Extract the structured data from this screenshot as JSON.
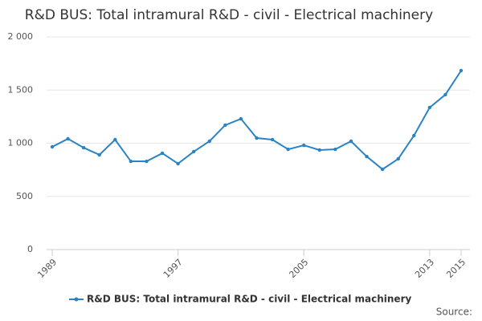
{
  "chart_data": {
    "type": "line",
    "title": "R&D BUS: Total intramural R&D - civil - Electrical machinery",
    "x": [
      1989,
      1990,
      1991,
      1992,
      1993,
      1994,
      1995,
      1996,
      1997,
      1998,
      1999,
      2000,
      2001,
      2002,
      2003,
      2004,
      2005,
      2006,
      2007,
      2008,
      2009,
      2010,
      2011,
      2012,
      2013,
      2014,
      2015
    ],
    "series": [
      {
        "name": "R&D BUS: Total intramural R&D - civil - Electrical machinery",
        "color": "#2a84c4",
        "values": [
          966,
          1042,
          958,
          891,
          1034,
          830,
          830,
          906,
          808,
          921,
          1019,
          1170,
          1230,
          1049,
          1034,
          943,
          981,
          936,
          943,
          1019,
          875,
          755,
          853,
          1072,
          1336,
          1457,
          1683
        ]
      }
    ],
    "xlim": [
      1989,
      2015
    ],
    "xticks": [
      1989,
      1997,
      2005,
      2013,
      2015
    ],
    "ylim": [
      0,
      2000
    ],
    "yticks": [
      0,
      500,
      {
        "value": 1000,
        "label": "1 000"
      },
      {
        "value": 1500,
        "label": "1 500"
      },
      {
        "value": 2000,
        "label": "2 000"
      }
    ],
    "grid": true,
    "source": "Source:"
  }
}
